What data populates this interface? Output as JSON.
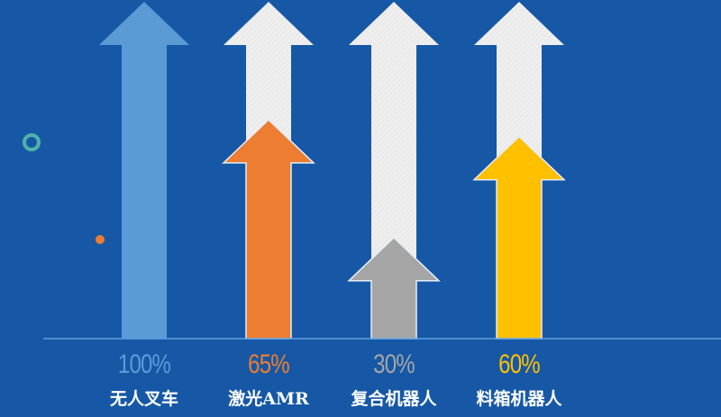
{
  "chart_data": {
    "type": "bar",
    "style": "arrows",
    "categories": [
      "无人叉车",
      "激光AMR",
      "复合机器人",
      "料箱机器人"
    ],
    "values": [
      100,
      65,
      30,
      60
    ],
    "value_labels": [
      "100%",
      "65%",
      "30%",
      "60%"
    ],
    "ylim": [
      0,
      100
    ],
    "grid": false,
    "colors": [
      "#5b9bd5",
      "#ed7d31",
      "#a5a5a5",
      "#ffc000"
    ],
    "track_color": "#ececec",
    "background": "#1658a6"
  }
}
